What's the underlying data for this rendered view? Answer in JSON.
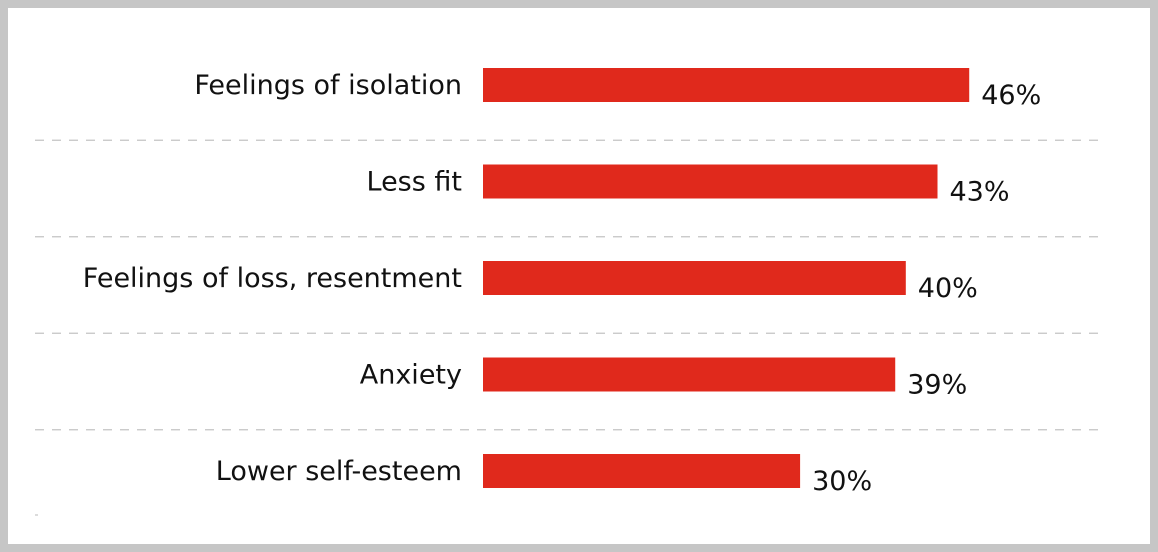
{
  "chart_data": {
    "type": "bar",
    "orientation": "horizontal",
    "categories": [
      "Feelings of isolation",
      "Less fit",
      "Feelings of loss, resentment",
      "Anxiety",
      "Lower self-esteem"
    ],
    "values": [
      46,
      43,
      40,
      39,
      30
    ],
    "value_labels": [
      "46%",
      "43%",
      "40%",
      "39%",
      "30%"
    ],
    "unit": "%",
    "bar_color": "#e0291c",
    "title": "",
    "xlabel": "",
    "ylabel": "",
    "xlim": [
      0,
      46
    ],
    "grid": "dashed horizontal separators between rows",
    "legend": "none"
  }
}
